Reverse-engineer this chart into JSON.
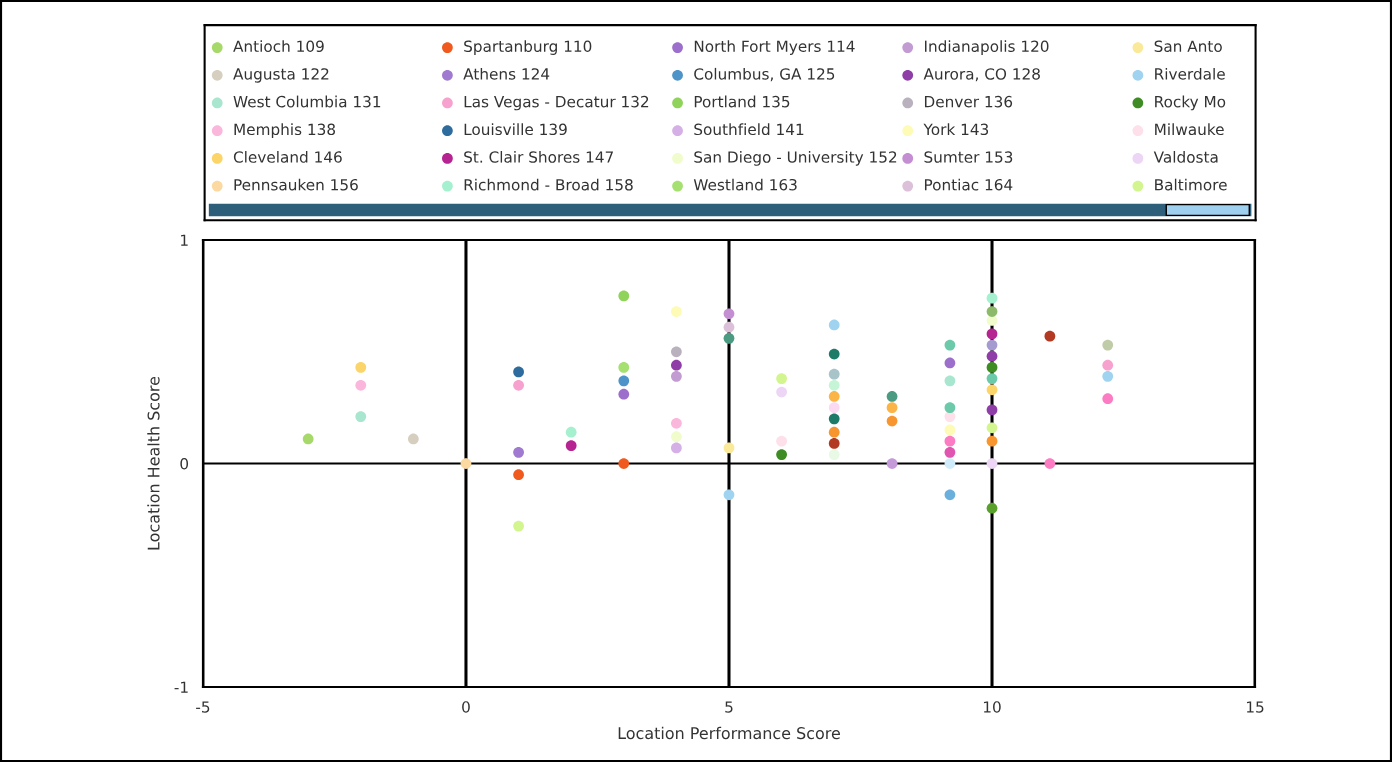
{
  "chart_data": {
    "type": "scatter",
    "xlabel": "Location Performance Score",
    "ylabel": "Location Health Score",
    "xlim": [
      -5,
      15
    ],
    "xticks": [
      -5,
      0,
      5,
      10,
      15
    ],
    "ylim": [
      -1,
      1
    ],
    "yticks": [
      -1,
      0,
      1
    ],
    "grid": true,
    "legend": "top",
    "marker": "circle",
    "series": [
      {
        "name": "Antioch 109",
        "color": "#a6d96a",
        "x": [
          -3
        ],
        "values": [
          0.11
        ]
      },
      {
        "name": "Spartanburg 110",
        "color": "#f05a1e",
        "x": [
          1,
          3
        ],
        "values": [
          -0.05,
          0
        ]
      },
      {
        "name": "North Fort Myers 114",
        "color": "#9c6fcc",
        "x": [
          3,
          9.2
        ],
        "values": [
          0.31,
          0.45
        ]
      },
      {
        "name": "Indianapolis 120",
        "color": "#c39bd3",
        "x": [
          4
        ],
        "values": [
          0.39
        ]
      },
      {
        "name": "San Anto",
        "color": "#fbe99a",
        "x": [
          5
        ],
        "values": [
          0.07
        ]
      },
      {
        "name": "Augusta 122",
        "color": "#d6cfc0",
        "x": [
          -1
        ],
        "values": [
          0.11
        ]
      },
      {
        "name": "Athens 124",
        "color": "#a07ad0",
        "x": [
          1
        ],
        "values": [
          0.05
        ]
      },
      {
        "name": "Columbus, GA 125",
        "color": "#4f94c8",
        "x": [
          3
        ],
        "values": [
          0.37
        ]
      },
      {
        "name": "Aurora, CO 128",
        "color": "#8e3ea6",
        "x": [
          4,
          10,
          10
        ],
        "values": [
          0.44,
          0.48,
          0.24
        ]
      },
      {
        "name": "Riverdale",
        "color": "#9fd3f0",
        "x": [
          5,
          7,
          12.2
        ],
        "values": [
          -0.14,
          0.62,
          0.39
        ]
      },
      {
        "name": "West Columbia 131",
        "color": "#a8e6cf",
        "x": [
          -2,
          9.2
        ],
        "values": [
          0.21,
          0.37
        ]
      },
      {
        "name": "Las Vegas - Decatur 132",
        "color": "#f7a1cf",
        "x": [
          1,
          12.2
        ],
        "values": [
          0.35,
          0.44
        ]
      },
      {
        "name": "Portland 135",
        "color": "#8fd35a",
        "x": [
          3
        ],
        "values": [
          0.75
        ]
      },
      {
        "name": "Denver 136",
        "color": "#b9b1bd",
        "x": [
          4
        ],
        "values": [
          0.5
        ]
      },
      {
        "name": "Rocky Mo",
        "color": "#3f8c24",
        "x": [
          6,
          10
        ],
        "values": [
          0.04,
          0.43
        ]
      },
      {
        "name": "Memphis 138",
        "color": "#fbb6dc",
        "x": [
          -2,
          4
        ],
        "values": [
          0.35,
          0.18
        ]
      },
      {
        "name": "Louisville 139",
        "color": "#2f6c9e",
        "x": [
          1
        ],
        "values": [
          0.41
        ]
      },
      {
        "name": "Southfield 141",
        "color": "#d4b0e6",
        "x": [
          4
        ],
        "values": [
          0.07
        ]
      },
      {
        "name": "York 143",
        "color": "#fdfbb5",
        "x": [
          4,
          9.2
        ],
        "values": [
          0.68,
          0.15
        ]
      },
      {
        "name": "Milwauke",
        "color": "#fde0ea",
        "x": [
          6,
          9.2
        ],
        "values": [
          0.1,
          0.21
        ]
      },
      {
        "name": "Cleveland 146",
        "color": "#fbd46a",
        "x": [
          -2,
          10
        ],
        "values": [
          0.43,
          0.33
        ]
      },
      {
        "name": "St. Clair Shores 147",
        "color": "#b52491",
        "x": [
          2,
          10
        ],
        "values": [
          0.08,
          0.58
        ]
      },
      {
        "name": "San Diego - University 152",
        "color": "#f0fccb",
        "x": [
          4,
          10
        ],
        "values": [
          0.12,
          0.64
        ]
      },
      {
        "name": "Sumter 153",
        "color": "#c48ed3",
        "x": [
          5
        ],
        "values": [
          0.67
        ]
      },
      {
        "name": "Valdosta",
        "color": "#edd5f5",
        "x": [
          6,
          10
        ],
        "values": [
          0.32,
          0
        ]
      },
      {
        "name": "Pennsauken 156",
        "color": "#fbd9a0",
        "x": [
          0
        ],
        "values": [
          0
        ]
      },
      {
        "name": "Richmond - Broad 158",
        "color": "#a5f0cf",
        "x": [
          2,
          10
        ],
        "values": [
          0.14,
          0.74
        ]
      },
      {
        "name": "Westland 163",
        "color": "#a5e070",
        "x": [
          3
        ],
        "values": [
          0.43
        ]
      },
      {
        "name": "Pontiac 164",
        "color": "#dcc0d9",
        "x": [
          5
        ],
        "values": [
          0.61
        ]
      },
      {
        "name": "Baltimore",
        "color": "#d2f58f",
        "x": [
          1,
          6,
          10
        ],
        "values": [
          -0.28,
          0.38,
          0.16
        ]
      },
      {
        "color": "#4a9b82",
        "x": [
          5,
          8.1
        ],
        "values": [
          0.56,
          0.3
        ]
      },
      {
        "color": "#1e7b67",
        "x": [
          7,
          7
        ],
        "values": [
          0.49,
          0.2
        ]
      },
      {
        "color": "#a9c4c9",
        "x": [
          7
        ],
        "values": [
          0.4
        ]
      },
      {
        "color": "#c5f5d6",
        "x": [
          7
        ],
        "values": [
          0.35
        ]
      },
      {
        "color": "#fbb447",
        "x": [
          7,
          8.1
        ],
        "values": [
          0.3,
          0.25
        ]
      },
      {
        "color": "#fbd9f1",
        "x": [
          7
        ],
        "values": [
          0.25
        ]
      },
      {
        "color": "#f7962e",
        "x": [
          7,
          8.1,
          10
        ],
        "values": [
          0.14,
          0.19,
          0.1
        ]
      },
      {
        "color": "#b33a22",
        "x": [
          7,
          11.1
        ],
        "values": [
          0.09,
          0.57
        ]
      },
      {
        "color": "#e8fae6",
        "x": [
          7
        ],
        "values": [
          0.04
        ]
      },
      {
        "color": "#c49ad8",
        "x": [
          8.1
        ],
        "values": [
          0
        ]
      },
      {
        "color": "#6ccaaa",
        "x": [
          9.2,
          9.2,
          10
        ],
        "values": [
          0.53,
          0.25,
          0.38
        ]
      },
      {
        "color": "#fc7cc3",
        "x": [
          9.2,
          11.1,
          12.2
        ],
        "values": [
          0.1,
          0,
          0.29
        ]
      },
      {
        "color": "#e055b0",
        "x": [
          9.2
        ],
        "values": [
          0.05
        ]
      },
      {
        "color": "#d0ecfb",
        "x": [
          9.2
        ],
        "values": [
          0
        ]
      },
      {
        "color": "#6bb0dc",
        "x": [
          9.2
        ],
        "values": [
          -0.14
        ]
      },
      {
        "color": "#8cba6a",
        "x": [
          10
        ],
        "values": [
          0.68
        ]
      },
      {
        "color": "#a69bd0",
        "x": [
          10
        ],
        "values": [
          0.53
        ]
      },
      {
        "color": "#5aa02c",
        "x": [
          10
        ],
        "values": [
          -0.2
        ]
      },
      {
        "color": "#c0cca8",
        "x": [
          12.2
        ],
        "values": [
          0.53
        ]
      }
    ]
  }
}
